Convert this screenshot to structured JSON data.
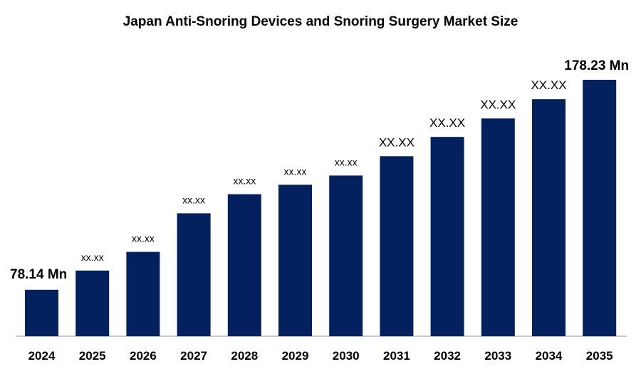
{
  "chart_data": {
    "type": "bar",
    "title": "Japan Anti-Snoring Devices and Snoring Surgery Market Size",
    "xlabel": "",
    "ylabel": "",
    "categories": [
      "2024",
      "2025",
      "2026",
      "2027",
      "2028",
      "2029",
      "2030",
      "2031",
      "2032",
      "2033",
      "2034",
      "2035"
    ],
    "values": [
      78.14,
      87.3,
      96.2,
      114.6,
      123.7,
      128.2,
      132.6,
      141.8,
      151.0,
      159.8,
      169.0,
      178.23
    ],
    "data_labels": [
      "78.14 Mn",
      "xx.xx",
      "xx.xx",
      "xx.xx",
      "xx.xx",
      "xx.xx",
      "xx.xx",
      "XX.XX",
      "XX.XX",
      "XX.XX",
      "XX.XX",
      "178.23 Mn"
    ],
    "ylim": [
      56,
      178.23
    ],
    "y_axis_visible": false,
    "grid": false,
    "bar_color": "#03205f"
  }
}
